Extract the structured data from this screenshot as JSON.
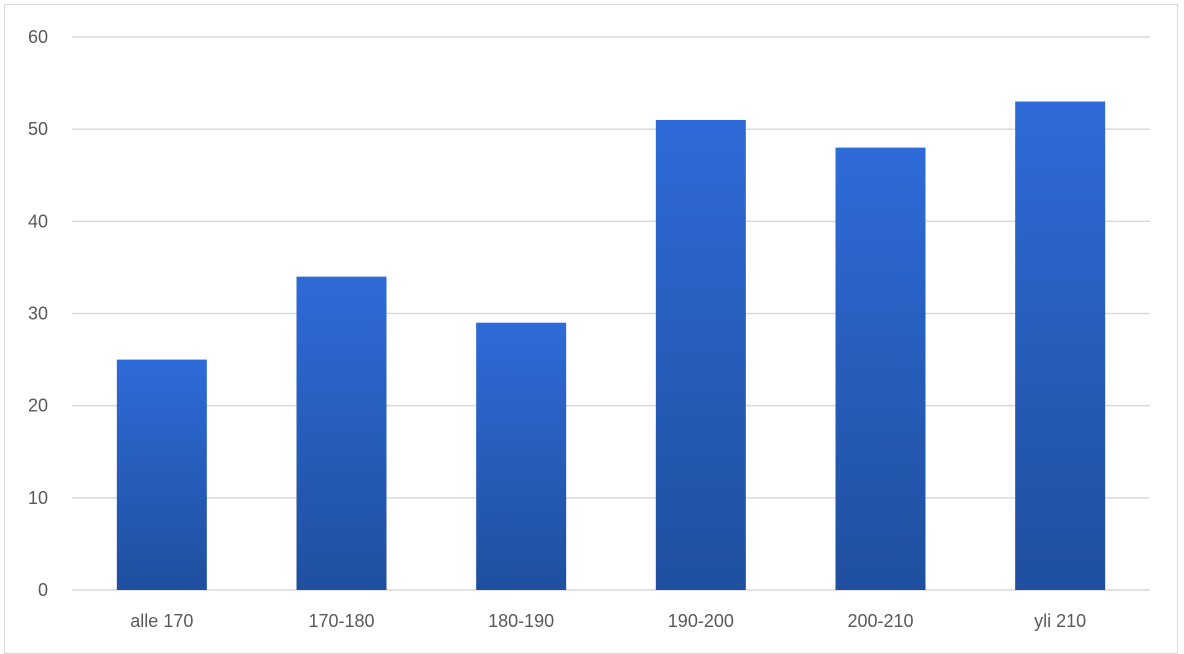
{
  "chart_data": {
    "type": "bar",
    "title": "",
    "xlabel": "",
    "ylabel": "",
    "categories": [
      "alle 170",
      "170-180",
      "180-190",
      "190-200",
      "200-210",
      "yli 210"
    ],
    "values": [
      25,
      34,
      29,
      51,
      48,
      53
    ],
    "ylim": [
      0,
      60
    ],
    "yticks": [
      "0",
      "10",
      "20",
      "30",
      "40",
      "50",
      "60"
    ],
    "grid": true,
    "legend": "none",
    "colors": {
      "bar_top": "#2e6bd8",
      "bar_bottom": "#1f4f9e",
      "grid": "#d9d9d9",
      "axis_text": "#595959"
    }
  }
}
